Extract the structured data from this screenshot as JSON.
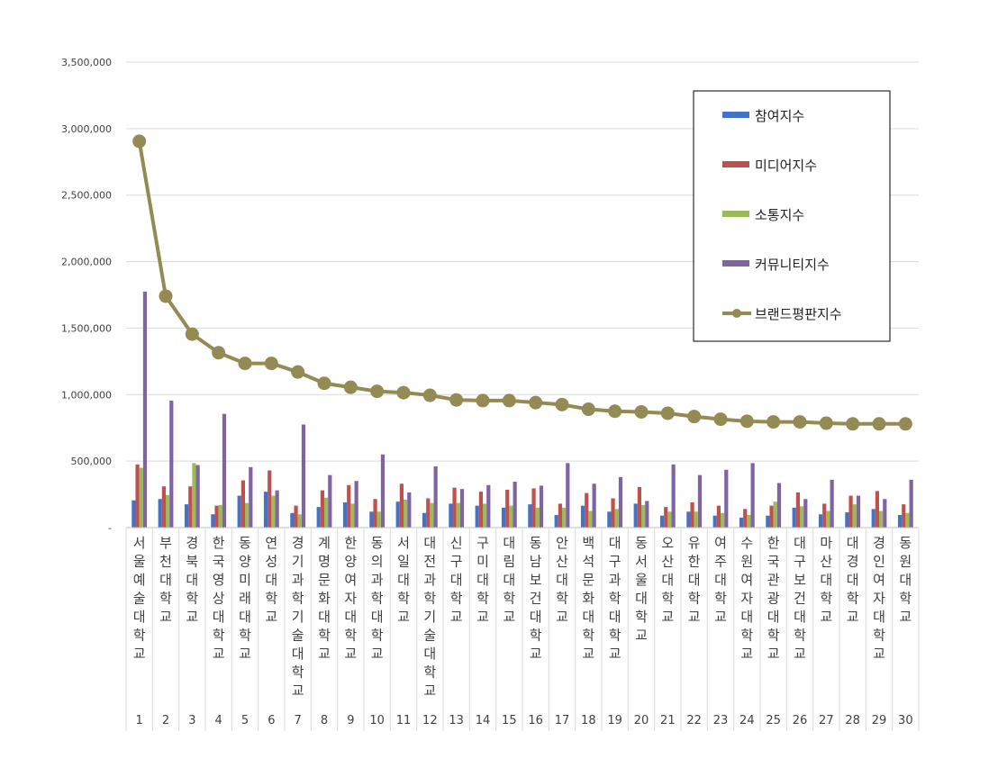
{
  "chart_data": {
    "type": "bar",
    "title": "",
    "xlabel": "",
    "ylabel": "",
    "ylim": [
      0,
      3500000
    ],
    "yticks": [
      {
        "value": 0,
        "label": "-"
      },
      {
        "value": 500000,
        "label": "500,000"
      },
      {
        "value": 1000000,
        "label": "1,000,000"
      },
      {
        "value": 1500000,
        "label": "1,500,000"
      },
      {
        "value": 2000000,
        "label": "2,000,000"
      },
      {
        "value": 2500000,
        "label": "2,500,000"
      },
      {
        "value": 3000000,
        "label": "3,000,000"
      },
      {
        "value": 3500000,
        "label": "3,500,000"
      }
    ],
    "grid": true,
    "legend_position": "top-right",
    "ranks": [
      "1",
      "2",
      "3",
      "4",
      "5",
      "6",
      "7",
      "8",
      "9",
      "10",
      "11",
      "12",
      "13",
      "14",
      "15",
      "16",
      "17",
      "18",
      "19",
      "20",
      "21",
      "22",
      "23",
      "24",
      "25",
      "26",
      "27",
      "28",
      "29",
      "30"
    ],
    "categories": [
      "서울예술대학교",
      "부천대학교",
      "경북대학교",
      "한국영상대학교",
      "동양미래대학교",
      "연성대학교",
      "경기과학기술대학교",
      "계명문화대학교",
      "한양여자대학교",
      "동의과학대학교",
      "서일대학교",
      "대전과학기술대학교",
      "신구대학교",
      "구미대학교",
      "대림대학교",
      "동남보건대학교",
      "안산대학교",
      "백석문화대학교",
      "대구과학대학교",
      "동서울대학교",
      "오산대학교",
      "유한대학교",
      "여주대학교",
      "수원여자대학교",
      "한국관광대학교",
      "대구보건대학교",
      "마산대학교",
      "대경대학교",
      "경인여자대학교",
      "동원대학교"
    ],
    "series": [
      {
        "name": "참여지수",
        "type": "bar",
        "color": "#4472C4",
        "values": [
          205000,
          215000,
          175000,
          100000,
          240000,
          270000,
          110000,
          155000,
          190000,
          120000,
          195000,
          110000,
          180000,
          165000,
          150000,
          175000,
          95000,
          165000,
          120000,
          180000,
          90000,
          120000,
          90000,
          75000,
          90000,
          150000,
          100000,
          115000,
          140000,
          95000
        ]
      },
      {
        "name": "미디어지수",
        "type": "bar",
        "color": "#C0504D",
        "values": [
          475000,
          310000,
          310000,
          165000,
          355000,
          430000,
          165000,
          280000,
          320000,
          215000,
          330000,
          220000,
          300000,
          270000,
          285000,
          295000,
          180000,
          260000,
          220000,
          305000,
          155000,
          190000,
          165000,
          140000,
          165000,
          265000,
          180000,
          240000,
          275000,
          175000
        ]
      },
      {
        "name": "소통지수",
        "type": "bar",
        "color": "#9BBB59",
        "values": [
          450000,
          245000,
          485000,
          170000,
          185000,
          240000,
          100000,
          225000,
          180000,
          120000,
          210000,
          185000,
          185000,
          180000,
          165000,
          150000,
          150000,
          125000,
          140000,
          170000,
          120000,
          120000,
          110000,
          95000,
          195000,
          160000,
          125000,
          175000,
          125000,
          110000
        ]
      },
      {
        "name": "커뮤니티지수",
        "type": "bar",
        "color": "#8064A2",
        "values": [
          1775000,
          955000,
          470000,
          855000,
          455000,
          280000,
          775000,
          395000,
          350000,
          550000,
          265000,
          460000,
          290000,
          320000,
          345000,
          315000,
          485000,
          330000,
          380000,
          200000,
          475000,
          395000,
          435000,
          485000,
          335000,
          215000,
          360000,
          240000,
          215000,
          360000
        ]
      },
      {
        "name": "브랜드평판지수",
        "type": "line",
        "color": "#948A54",
        "values": [
          2905000,
          1740000,
          1455000,
          1315000,
          1235000,
          1235000,
          1170000,
          1085000,
          1055000,
          1025000,
          1015000,
          995000,
          960000,
          955000,
          955000,
          940000,
          925000,
          890000,
          875000,
          870000,
          860000,
          835000,
          815000,
          800000,
          795000,
          795000,
          785000,
          780000,
          780000,
          780000
        ]
      }
    ]
  }
}
